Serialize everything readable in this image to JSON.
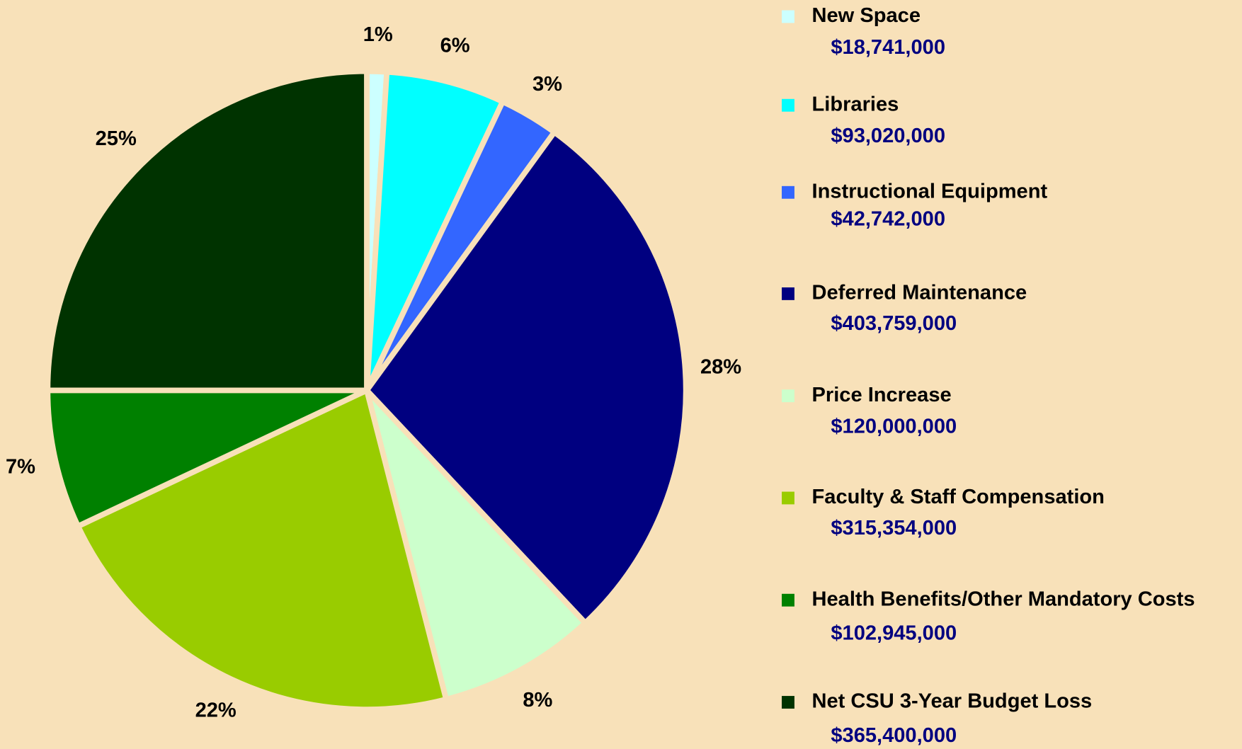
{
  "chart_data": {
    "type": "pie",
    "categories": [
      "New Space",
      "Libraries",
      "Instructional Equipment",
      "Deferred Maintenance",
      "Price Increase",
      "Faculty & Staff Compensation",
      "Health Benefits/Other Mandatory Costs",
      "Net CSU 3-Year Budget Loss"
    ],
    "values": [
      1,
      6,
      3,
      28,
      8,
      22,
      7,
      25
    ],
    "value_labels": [
      "1%",
      "6%",
      "3%",
      "28%",
      "8%",
      "22%",
      "7%",
      "25%"
    ],
    "amounts": [
      "$18,741,000",
      "$93,020,000",
      "$42,742,000",
      "$403,759,000",
      "$120,000,000",
      "$315,354,000",
      "$102,945,000",
      "$365,400,000"
    ],
    "colors": [
      "#ccffff",
      "#00ffff",
      "#3366ff",
      "#000080",
      "#ccffcc",
      "#99cc00",
      "#008000",
      "#003300"
    ],
    "legend": "right"
  }
}
